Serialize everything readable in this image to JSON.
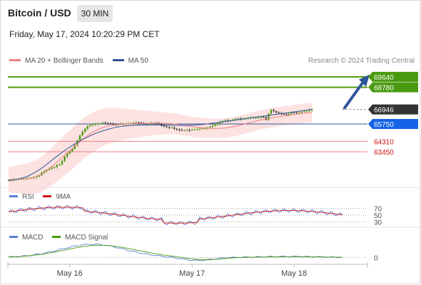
{
  "header": {
    "title": "Bitcoin / USD",
    "timeframe": "30 MIN",
    "datetime": "Friday, May 17, 2024 10:20:29 PM CET"
  },
  "legend": {
    "main": [
      {
        "label": "MA 20 + Bollinger Bands",
        "color": "#f08080"
      },
      {
        "label": "MA 50",
        "color": "#2e5597"
      }
    ],
    "rsi": [
      {
        "label": "RSI",
        "color": "#5b7fd6"
      },
      {
        "label": "9MA",
        "color": "#d01010"
      }
    ],
    "macd": [
      {
        "label": "MACD",
        "color": "#5b7fd6"
      },
      {
        "label": "MACD Signal",
        "color": "#4a9a10"
      }
    ]
  },
  "credit": "Research © 2024 Trading Central",
  "colors": {
    "resistance": "#4a9a10",
    "support": "#f08080",
    "ma50": "#2e5597",
    "bull": "#4a9a10",
    "bear": "#333333",
    "current": "#333333",
    "pivot": "#1463e6",
    "arrow": "#2e5597"
  },
  "chart_data": {
    "type": "candlestick",
    "price_levels": [
      {
        "value": 69640,
        "label": "69640",
        "kind": "resistance"
      },
      {
        "value": 68780,
        "label": "68780",
        "kind": "resistance"
      },
      {
        "value": 66946,
        "label": "66946",
        "kind": "current"
      },
      {
        "value": 65750,
        "label": "65750",
        "kind": "pivot"
      },
      {
        "value": 64310,
        "label": "64310",
        "kind": "support"
      },
      {
        "value": 63450,
        "label": "63450",
        "kind": "support"
      }
    ],
    "price_ylim": [
      60800,
      70400
    ],
    "x_ticks": [
      "May 16",
      "May 17",
      "May 18"
    ],
    "x_tick_index": [
      24,
      72,
      112
    ],
    "n_bars": 132,
    "close": [
      61120,
      61120,
      61160,
      61190,
      61210,
      61220,
      61240,
      61250,
      61280,
      61300,
      61350,
      61400,
      61500,
      61720,
      61850,
      61950,
      62050,
      62150,
      62200,
      62350,
      62400,
      62700,
      63050,
      63300,
      63500,
      63700,
      64000,
      64400,
      64800,
      65100,
      65350,
      65550,
      65650,
      65700,
      65750,
      65780,
      65800,
      65850,
      65820,
      65800,
      65750,
      65720,
      65700,
      65720,
      65750,
      65730,
      65750,
      65780,
      65800,
      65850,
      65870,
      65850,
      65820,
      65800,
      65750,
      65780,
      65820,
      65830,
      65800,
      65780,
      65600,
      65550,
      65500,
      65450,
      65450,
      65350,
      65300,
      65250,
      65230,
      65230,
      65250,
      65230,
      65300,
      65300,
      65320,
      65350,
      65380,
      65400,
      65450,
      65500,
      65600,
      65700,
      65800,
      65900,
      66000,
      66050,
      66000,
      66050,
      66100,
      66150,
      66200,
      66150,
      66180,
      66200,
      66250,
      66300,
      66250,
      66280,
      66300,
      66350,
      66300,
      66100,
      66600,
      66900,
      66800,
      66700,
      66650,
      66600,
      66550,
      66500,
      66600,
      66700,
      66680,
      66650,
      66700,
      66750,
      66800,
      66850,
      66900,
      66946
    ],
    "ma20": [
      61150,
      61160,
      61170,
      61180,
      61200,
      61220,
      61250,
      61300,
      61380,
      61500,
      61650,
      61850,
      62050,
      62300,
      62550,
      62800,
      63050,
      63300,
      63550,
      63800,
      64050,
      64300,
      64550,
      64750,
      64950,
      65100,
      65250,
      65380,
      65480,
      65560,
      65620,
      65660,
      65700,
      65720,
      65740,
      65750,
      65760,
      65770,
      65775,
      65780,
      65785,
      65790,
      65795,
      65800,
      65800,
      65795,
      65790,
      65780,
      65770,
      65750,
      65700,
      65650,
      65600,
      65560,
      65520,
      65480,
      65450,
      65420,
      65400,
      65390,
      65380,
      65380,
      65390,
      65410,
      65440,
      65480,
      65520,
      65580,
      65650,
      65720,
      65800,
      65880,
      65950,
      66020,
      66080,
      66140,
      66200,
      66250,
      66300,
      66340,
      66380,
      66420,
      66460,
      66500,
      66540,
      66580,
      66620,
      66650,
      66680,
      66700
    ],
    "ma50": [
      61050,
      61100,
      61150,
      61200,
      61280,
      61380,
      61500,
      61650,
      61820,
      62000,
      62200,
      62420,
      62650,
      62880,
      63100,
      63320,
      63530,
      63730,
      63920,
      64100,
      64270,
      64430,
      64580,
      64720,
      64850,
      64970,
      65080,
      65180,
      65270,
      65350,
      65420,
      65480,
      65530,
      65570,
      65600,
      65620,
      65640,
      65655,
      65665,
      65670,
      65675,
      65675,
      65670,
      65665,
      65660,
      65655,
      65650,
      65645,
      65640,
      65640,
      65640,
      65645,
      65650,
      65660,
      65675,
      65695,
      65720,
      65750,
      65790,
      65830,
      65870,
      65910,
      65950,
      65990,
      66030,
      66070,
      66110,
      66150,
      66190,
      66230,
      66270,
      66310,
      66350,
      66390,
      66430,
      66470,
      66510,
      66550,
      66590,
      66630,
      66670,
      66710,
      66750,
      66790,
      66830,
      66870,
      66910,
      66950
    ],
    "rsi_levels": [
      70,
      50,
      30
    ],
    "rsi_ylim": [
      20,
      80
    ],
    "macd_levels": [
      0
    ],
    "macd_ylim": [
      -150,
      300
    ]
  }
}
